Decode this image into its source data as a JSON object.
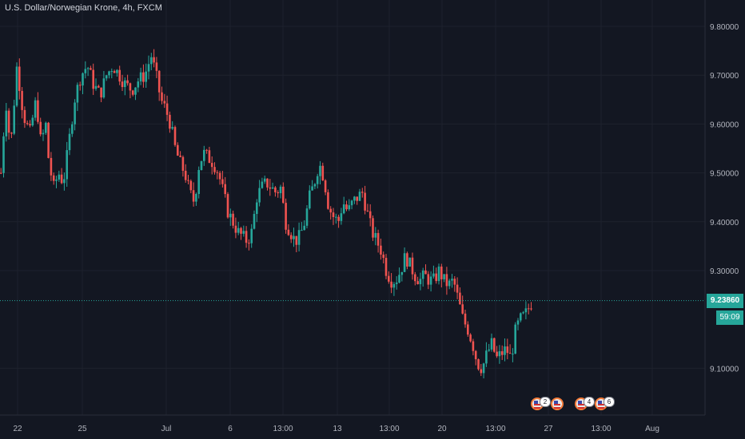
{
  "chart_title": "U.S. Dollar/Norwegian Krone, 4h, FXCM",
  "colors": {
    "background": "#131722",
    "up": "#26a69a",
    "down": "#ef5350",
    "grid": "#1e222d",
    "axis_text": "#b2b5be",
    "last_price_line": "#26a69a"
  },
  "countdown": "59:09",
  "events": [
    {
      "icon": "us-flag-icon",
      "count": "2"
    },
    {
      "icon": "us-flag-icon",
      "count": ""
    },
    {
      "icon": "us-flag-icon",
      "count": "4"
    },
    {
      "icon": "us-flag-icon",
      "count": "6"
    }
  ],
  "chart_data": {
    "type": "candlestick",
    "title": "U.S. Dollar/Norwegian Krone, 4h, FXCM",
    "y_ticks": [
      "9.80000",
      "9.70000",
      "9.60000",
      "9.50000",
      "9.40000",
      "9.30000",
      "9.10000"
    ],
    "y_range": [
      9.0,
      9.85
    ],
    "x_ticks": [
      "22",
      "25",
      "Jul",
      "6",
      "13:00",
      "13",
      "13:00",
      "20",
      "13:00",
      "27",
      "13:00",
      "Aug"
    ],
    "last_price": "9.23860",
    "grid": true,
    "series_path": [
      [
        0,
        9.5
      ],
      [
        6,
        9.65
      ],
      [
        12,
        9.55
      ],
      [
        20,
        9.72
      ],
      [
        28,
        9.62
      ],
      [
        36,
        9.58
      ],
      [
        44,
        9.65
      ],
      [
        50,
        9.56
      ],
      [
        56,
        9.6
      ],
      [
        60,
        9.52
      ],
      [
        66,
        9.47
      ],
      [
        72,
        9.5
      ],
      [
        78,
        9.48
      ],
      [
        84,
        9.55
      ],
      [
        92,
        9.65
      ],
      [
        100,
        9.7
      ],
      [
        108,
        9.72
      ],
      [
        116,
        9.68
      ],
      [
        124,
        9.66
      ],
      [
        132,
        9.7
      ],
      [
        140,
        9.72
      ],
      [
        148,
        9.7
      ],
      [
        156,
        9.68
      ],
      [
        164,
        9.67
      ],
      [
        172,
        9.69
      ],
      [
        180,
        9.7
      ],
      [
        188,
        9.74
      ],
      [
        194,
        9.7
      ],
      [
        200,
        9.65
      ],
      [
        206,
        9.63
      ],
      [
        212,
        9.6
      ],
      [
        218,
        9.55
      ],
      [
        224,
        9.52
      ],
      [
        230,
        9.5
      ],
      [
        236,
        9.46
      ],
      [
        242,
        9.44
      ],
      [
        248,
        9.52
      ],
      [
        254,
        9.54
      ],
      [
        260,
        9.53
      ],
      [
        266,
        9.52
      ],
      [
        272,
        9.5
      ],
      [
        278,
        9.46
      ],
      [
        284,
        9.42
      ],
      [
        290,
        9.4
      ],
      [
        296,
        9.38
      ],
      [
        302,
        9.37
      ],
      [
        308,
        9.36
      ],
      [
        314,
        9.38
      ],
      [
        320,
        9.45
      ],
      [
        326,
        9.47
      ],
      [
        332,
        9.48
      ],
      [
        338,
        9.47
      ],
      [
        344,
        9.46
      ],
      [
        350,
        9.47
      ],
      [
        356,
        9.4
      ],
      [
        362,
        9.38
      ],
      [
        368,
        9.36
      ],
      [
        374,
        9.37
      ],
      [
        380,
        9.4
      ],
      [
        386,
        9.45
      ],
      [
        392,
        9.48
      ],
      [
        398,
        9.52
      ],
      [
        404,
        9.49
      ],
      [
        410,
        9.43
      ],
      [
        416,
        9.41
      ],
      [
        422,
        9.4
      ],
      [
        428,
        9.44
      ],
      [
        434,
        9.42
      ],
      [
        440,
        9.44
      ],
      [
        446,
        9.45
      ],
      [
        452,
        9.46
      ],
      [
        458,
        9.42
      ],
      [
        464,
        9.38
      ],
      [
        470,
        9.36
      ],
      [
        476,
        9.34
      ],
      [
        482,
        9.3
      ],
      [
        488,
        9.28
      ],
      [
        494,
        9.28
      ],
      [
        500,
        9.3
      ],
      [
        506,
        9.33
      ],
      [
        512,
        9.31
      ],
      [
        518,
        9.29
      ],
      [
        524,
        9.28
      ],
      [
        530,
        9.29
      ],
      [
        536,
        9.28
      ],
      [
        542,
        9.28
      ],
      [
        548,
        9.3
      ],
      [
        554,
        9.28
      ],
      [
        560,
        9.27
      ],
      [
        566,
        9.28
      ],
      [
        572,
        9.24
      ],
      [
        578,
        9.2
      ],
      [
        584,
        9.18
      ],
      [
        590,
        9.15
      ],
      [
        596,
        9.11
      ],
      [
        602,
        9.1
      ],
      [
        608,
        9.13
      ],
      [
        614,
        9.15
      ],
      [
        620,
        9.12
      ],
      [
        626,
        9.13
      ],
      [
        632,
        9.14
      ],
      [
        638,
        9.12
      ],
      [
        644,
        9.18
      ],
      [
        650,
        9.2
      ],
      [
        656,
        9.21
      ],
      [
        662,
        9.23
      ],
      [
        666,
        9.2386
      ]
    ],
    "noise_seed": 7
  }
}
